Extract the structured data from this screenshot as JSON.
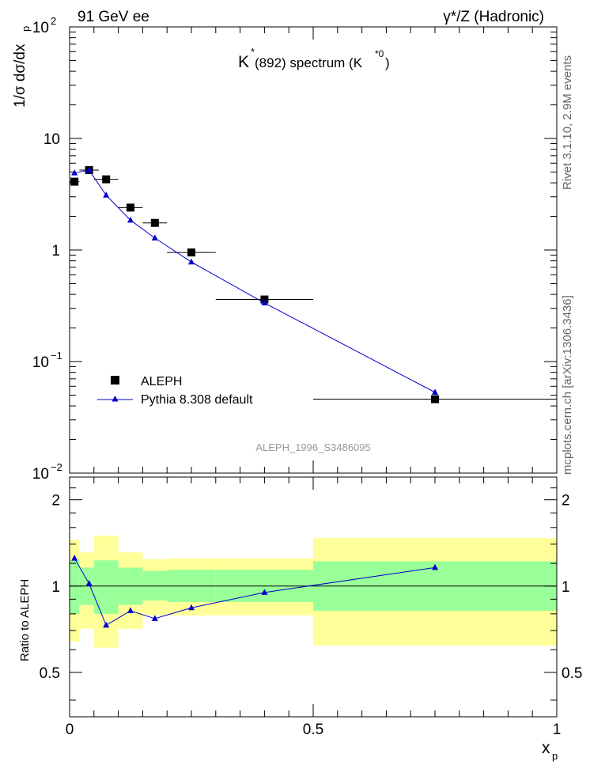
{
  "header": {
    "left": "91 GeV ee",
    "right": "γ*/Z (Hadronic)",
    "plot_title_main": "K",
    "plot_title_sup": "*",
    "plot_title_rest": "(892) spectrum (K",
    "plot_title_sup2": "*0",
    "plot_title_close": ")",
    "analysis_id": "ALEPH_1996_S3486095"
  },
  "side_labels": {
    "rivet": "Rivet 3.1.10,  2.9M events",
    "site": "mcplots.cern.ch [arXiv:1306.3436]"
  },
  "axes": {
    "ylabel_top": "1/σ dσ/dx",
    "ylabel_top_sub": "p",
    "ylabel_bottom": "Ratio to ALEPH",
    "xlabel": "x",
    "xlabel_sub": "p",
    "top_yticks": [
      {
        "base": "10",
        "exp": "2"
      },
      {
        "base": "10",
        "exp": ""
      },
      {
        "base": "1",
        "exp": ""
      },
      {
        "base": "10",
        "exp": "−1"
      },
      {
        "base": "10",
        "exp": "−2"
      }
    ],
    "bottom_yticks": [
      "2",
      "1",
      "0.5"
    ],
    "xticks": [
      "0",
      "0.5",
      "1"
    ]
  },
  "legend": {
    "data": "ALEPH",
    "mc": "Pythia 8.308 default"
  },
  "colors": {
    "data": "#000000",
    "mc": "#0000cc",
    "band_inner": "#99ff99",
    "band_outer": "#ffff99"
  },
  "chart_data": {
    "type": "scatter",
    "y_scale": "log",
    "xlim": [
      0,
      1
    ],
    "ylim": [
      0.01,
      100
    ],
    "ratio_ylim": [
      0.35,
      2.4
    ],
    "series": [
      {
        "name": "ALEPH",
        "x": [
          0.01,
          0.04,
          0.075,
          0.125,
          0.175,
          0.25,
          0.4,
          0.75
        ],
        "y": [
          4.1,
          5.2,
          4.3,
          2.4,
          1.75,
          0.95,
          0.36,
          0.046
        ],
        "xerr": [
          0.01,
          0.02,
          0.025,
          0.025,
          0.025,
          0.05,
          0.1,
          0.25
        ]
      },
      {
        "name": "Pythia 8.308 default",
        "x": [
          0.01,
          0.04,
          0.075,
          0.125,
          0.175,
          0.25,
          0.4,
          0.75
        ],
        "y": [
          4.9,
          5.2,
          3.1,
          1.85,
          1.28,
          0.78,
          0.335,
          0.053
        ]
      }
    ],
    "ratio": {
      "x": [
        0.01,
        0.04,
        0.075,
        0.125,
        0.175,
        0.25,
        0.4,
        0.75
      ],
      "values": [
        1.25,
        1.02,
        0.73,
        0.82,
        0.77,
        0.84,
        0.95,
        1.16
      ],
      "bins": [
        {
          "lo": 0.0,
          "hi": 0.02,
          "inner": [
            0.8,
            1.23
          ],
          "outer": [
            0.64,
            1.45
          ]
        },
        {
          "lo": 0.02,
          "hi": 0.05,
          "inner": [
            0.86,
            1.16
          ],
          "outer": [
            0.71,
            1.31
          ]
        },
        {
          "lo": 0.05,
          "hi": 0.1,
          "inner": [
            0.8,
            1.23
          ],
          "outer": [
            0.61,
            1.5
          ]
        },
        {
          "lo": 0.1,
          "hi": 0.15,
          "inner": [
            0.86,
            1.16
          ],
          "outer": [
            0.71,
            1.31
          ]
        },
        {
          "lo": 0.15,
          "hi": 0.2,
          "inner": [
            0.89,
            1.13
          ],
          "outer": [
            0.79,
            1.24
          ]
        },
        {
          "lo": 0.2,
          "hi": 0.3,
          "inner": [
            0.88,
            1.14
          ],
          "outer": [
            0.79,
            1.25
          ]
        },
        {
          "lo": 0.3,
          "hi": 0.5,
          "inner": [
            0.88,
            1.14
          ],
          "outer": [
            0.79,
            1.25
          ]
        },
        {
          "lo": 0.5,
          "hi": 1.0,
          "inner": [
            0.82,
            1.22
          ],
          "outer": [
            0.62,
            1.47
          ]
        }
      ]
    }
  }
}
